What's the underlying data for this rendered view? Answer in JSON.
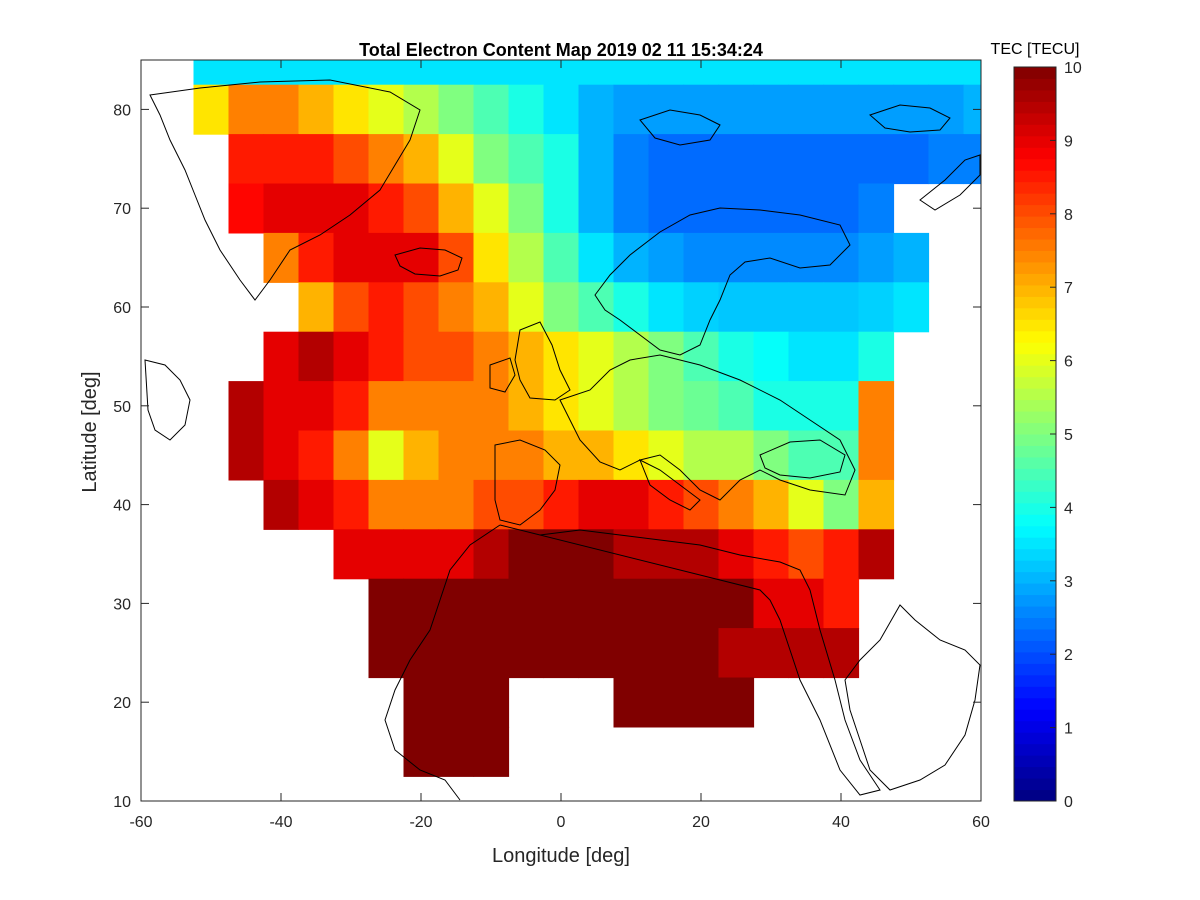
{
  "chart_data": {
    "type": "heatmap",
    "title": "Total Electron Content Map 2019 02 11 15:34:24",
    "xlabel": "Longitude [deg]",
    "ylabel": "Latitude [deg]",
    "xlim": [
      -60,
      60
    ],
    "ylim": [
      10,
      85
    ],
    "xticks": [
      -60,
      -40,
      -20,
      0,
      20,
      40,
      60
    ],
    "yticks": [
      10,
      20,
      30,
      40,
      50,
      60,
      70,
      80
    ],
    "colorbar": {
      "label": "TEC [TECU]",
      "range": [
        0,
        10
      ],
      "ticks": [
        0,
        1,
        2,
        3,
        4,
        5,
        6,
        7,
        8,
        9,
        10
      ],
      "colormap": "jet"
    },
    "tec_grid": {
      "lat": [
        85,
        80,
        75,
        70,
        65,
        60,
        55,
        50,
        45,
        40,
        35,
        30,
        25,
        20,
        15
      ],
      "lon": [
        -60,
        -55,
        -50,
        -45,
        -40,
        -35,
        -30,
        -25,
        -20,
        -15,
        -10,
        -5,
        0,
        5,
        10,
        15,
        20,
        25,
        30,
        35,
        40,
        45,
        50,
        55,
        60
      ],
      "values": [
        [
          null,
          null,
          3.5,
          3.5,
          3.5,
          3.5,
          3.5,
          3.5,
          3.5,
          3.5,
          3.5,
          3.5,
          3.5,
          3.5,
          3.5,
          3.5,
          3.5,
          3.5,
          3.5,
          3.5,
          3.5,
          3.5,
          3.5,
          3.5,
          3.5
        ],
        [
          null,
          null,
          6.5,
          7.5,
          7.5,
          7.0,
          6.5,
          6.0,
          5.5,
          5.0,
          4.5,
          4.0,
          3.5,
          3.0,
          2.8,
          2.8,
          2.8,
          2.8,
          2.8,
          2.8,
          2.8,
          2.8,
          2.8,
          2.8,
          3.0
        ],
        [
          null,
          null,
          null,
          8.5,
          8.5,
          8.5,
          8.0,
          7.5,
          7.0,
          6.0,
          5.0,
          4.5,
          4.0,
          3.0,
          2.5,
          2.3,
          2.3,
          2.3,
          2.3,
          2.3,
          2.3,
          2.3,
          2.3,
          2.5,
          2.5
        ],
        [
          null,
          null,
          null,
          8.7,
          9.0,
          9.0,
          9.0,
          8.5,
          8.0,
          7.0,
          6.0,
          5.0,
          4.0,
          3.0,
          2.5,
          2.3,
          2.3,
          2.3,
          2.3,
          2.3,
          2.3,
          2.5,
          null,
          null,
          null
        ],
        [
          null,
          null,
          null,
          null,
          7.5,
          8.5,
          9.0,
          9.0,
          9.0,
          8.0,
          6.5,
          5.5,
          4.5,
          3.5,
          3.0,
          2.8,
          2.6,
          2.6,
          2.6,
          2.6,
          2.6,
          2.8,
          3.0,
          null,
          null
        ],
        [
          null,
          null,
          null,
          null,
          null,
          7.0,
          8.0,
          8.5,
          8.0,
          7.5,
          7.0,
          6.0,
          5.0,
          4.5,
          4.0,
          3.5,
          3.3,
          3.2,
          3.2,
          3.2,
          3.2,
          3.3,
          3.5,
          null,
          null
        ],
        [
          null,
          null,
          null,
          null,
          9.0,
          9.5,
          9.0,
          8.5,
          8.0,
          8.0,
          7.5,
          7.0,
          6.5,
          6.0,
          5.5,
          5.0,
          4.5,
          4.0,
          3.8,
          3.5,
          3.5,
          4.0,
          null,
          null,
          null
        ],
        [
          null,
          null,
          null,
          9.5,
          9.0,
          9.0,
          8.5,
          7.5,
          7.5,
          7.5,
          7.5,
          7.0,
          6.5,
          6.0,
          5.5,
          5.0,
          4.8,
          4.5,
          4.0,
          4.0,
          4.0,
          7.5,
          null,
          null,
          null
        ],
        [
          null,
          null,
          null,
          9.5,
          9.0,
          8.5,
          7.5,
          6.0,
          7.0,
          7.5,
          7.5,
          7.5,
          7.0,
          7.0,
          6.5,
          6.0,
          5.5,
          5.5,
          5.0,
          4.5,
          4.5,
          7.5,
          null,
          null,
          null
        ],
        [
          null,
          null,
          null,
          null,
          9.5,
          9.0,
          8.5,
          7.5,
          7.5,
          7.5,
          8.0,
          8.0,
          8.5,
          9.0,
          9.0,
          8.5,
          8.0,
          7.5,
          7.0,
          6.0,
          5.0,
          7.0,
          null,
          null,
          null
        ],
        [
          null,
          null,
          null,
          null,
          null,
          null,
          9.0,
          9.0,
          9.0,
          9.0,
          9.5,
          10,
          10,
          10,
          9.5,
          9.5,
          9.5,
          9.0,
          8.5,
          8.0,
          8.5,
          9.5,
          null,
          null,
          null
        ],
        [
          null,
          null,
          null,
          null,
          null,
          null,
          null,
          10,
          10,
          10,
          10,
          10,
          10,
          10,
          10,
          10,
          10,
          10,
          9.0,
          9.0,
          8.5,
          null,
          null,
          null,
          null
        ],
        [
          null,
          null,
          null,
          null,
          null,
          null,
          null,
          10,
          10,
          10,
          10,
          10,
          10,
          10,
          10,
          10,
          10,
          9.5,
          9.5,
          9.5,
          9.5,
          null,
          null,
          null,
          null
        ],
        [
          null,
          null,
          null,
          null,
          null,
          null,
          null,
          null,
          10,
          10,
          10,
          null,
          null,
          null,
          10,
          10,
          10,
          10,
          null,
          null,
          null,
          null,
          null,
          null,
          null
        ],
        [
          null,
          null,
          null,
          null,
          null,
          null,
          null,
          null,
          10,
          10,
          10,
          null,
          null,
          null,
          null,
          null,
          null,
          null,
          null,
          null,
          null,
          null,
          null,
          null,
          null
        ]
      ]
    }
  }
}
